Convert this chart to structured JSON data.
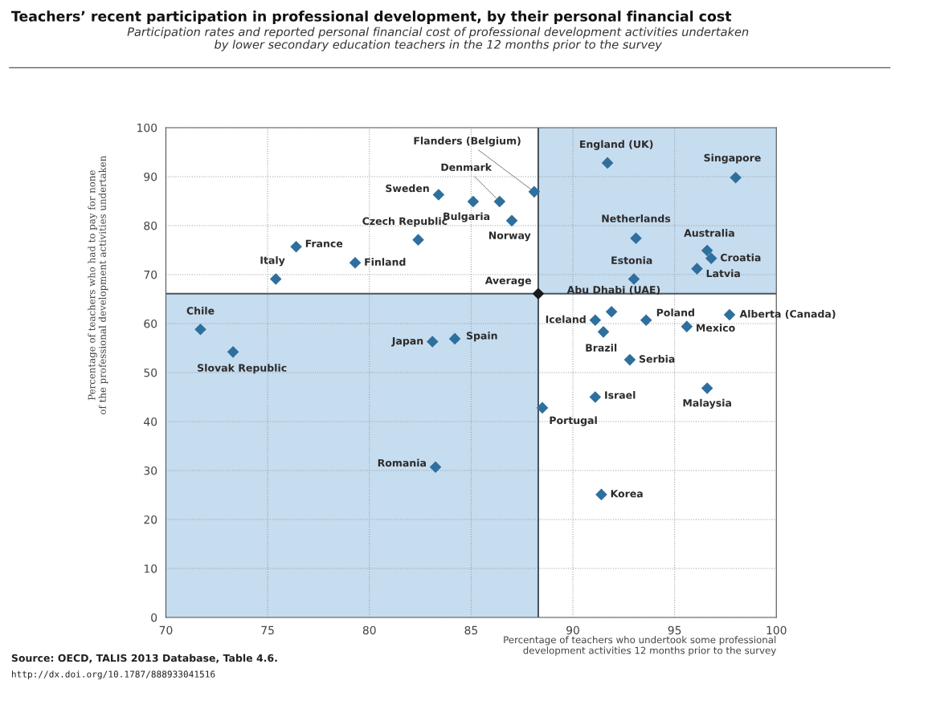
{
  "chart_data": {
    "type": "scatter",
    "title": "Teachers’ recent participation in professional development, by their personal financial cost",
    "subtitle": "Participation rates and reported personal financial cost of professional development activities undertaken\nby lower secondary education teachers in the 12 months prior to the survey",
    "xlabel": "Percentage of teachers who undertook some professional\ndevelopment activities 12 months prior to the survey",
    "ylabel": "Percentage of teachers who had to pay for none\nof the professional development activities undertaken",
    "series": [
      {
        "color": "#2e6f9e",
        "marker": "diamond",
        "x": [
          88.1,
          83.4,
          85.1,
          86.4,
          87.0,
          82.4,
          76.4,
          79.3,
          75.4,
          71.7,
          73.3,
          83.1,
          84.2,
          83.25,
          91.7,
          98.0,
          93.1,
          96.6,
          96.8,
          96.1,
          93.0,
          91.9,
          91.1,
          93.6,
          97.7,
          95.6,
          91.5,
          92.8,
          91.1,
          96.6,
          88.5,
          91.4
        ],
        "values": [
          86.9,
          86.3,
          84.9,
          84.9,
          81.0,
          77.1,
          75.7,
          72.4,
          69.1,
          58.8,
          54.2,
          56.3,
          56.9,
          30.7,
          92.8,
          89.8,
          77.4,
          74.9,
          73.3,
          71.2,
          69.1,
          62.4,
          60.7,
          60.7,
          61.8,
          59.4,
          58.3,
          52.6,
          45.0,
          46.8,
          42.8,
          25.1
        ]
      },
      {
        "color": "#1a1a1a",
        "marker": "diamond",
        "x": [
          88.3
        ],
        "values": [
          66.1
        ]
      }
    ],
    "ref_lines": [
      {
        "axis": "x",
        "value": 88.3,
        "color": "#4a5560"
      },
      {
        "axis": "y",
        "value": 66.1,
        "color": "#4a5560"
      }
    ],
    "xlim": [
      70,
      100
    ],
    "xticks": [
      70,
      75,
      80,
      85,
      90,
      95,
      100
    ],
    "ylim": [
      0,
      100
    ],
    "yticks": [
      0,
      10,
      20,
      30,
      40,
      50,
      60,
      70,
      80,
      90,
      100
    ],
    "grid": true,
    "line_style": "dotted",
    "annotations": [
      {
        "text": "Flanders (Belgium)",
        "x": 88.1,
        "y": 86.9
      },
      {
        "text": "Sweden",
        "x": 83.4,
        "y": 86.3
      },
      {
        "text": "Bulgaria",
        "x": 85.1,
        "y": 84.9
      },
      {
        "text": "Denmark",
        "x": 86.4,
        "y": 84.9
      },
      {
        "text": "Norway",
        "x": 87.0,
        "y": 81.0
      },
      {
        "text": "Czech Republic",
        "x": 82.4,
        "y": 77.1
      },
      {
        "text": "France",
        "x": 76.4,
        "y": 75.7
      },
      {
        "text": "Finland",
        "x": 79.3,
        "y": 72.4
      },
      {
        "text": "Italy",
        "x": 75.4,
        "y": 69.1
      },
      {
        "text": "Chile",
        "x": 71.7,
        "y": 58.8
      },
      {
        "text": "Slovak Republic",
        "x": 73.3,
        "y": 54.2
      },
      {
        "text": "Japan",
        "x": 83.1,
        "y": 56.3
      },
      {
        "text": "Spain",
        "x": 84.2,
        "y": 56.9
      },
      {
        "text": "Romania",
        "x": 83.25,
        "y": 30.7
      },
      {
        "text": "England (UK)",
        "x": 91.7,
        "y": 92.8
      },
      {
        "text": "Singapore",
        "x": 98.0,
        "y": 89.8
      },
      {
        "text": "Netherlands",
        "x": 93.1,
        "y": 77.4
      },
      {
        "text": "Australia",
        "x": 96.6,
        "y": 74.9
      },
      {
        "text": "Croatia",
        "x": 96.8,
        "y": 73.3
      },
      {
        "text": "Latvia",
        "x": 96.1,
        "y": 71.2
      },
      {
        "text": "Estonia",
        "x": 93.0,
        "y": 69.1
      },
      {
        "text": "Abu Dhabi (UAE)",
        "x": 91.9,
        "y": 62.4
      },
      {
        "text": "Iceland",
        "x": 91.1,
        "y": 60.7
      },
      {
        "text": "Poland",
        "x": 93.6,
        "y": 60.7
      },
      {
        "text": "Alberta (Canada)",
        "x": 97.7,
        "y": 61.8
      },
      {
        "text": "Mexico",
        "x": 95.6,
        "y": 59.4
      },
      {
        "text": "Brazil",
        "x": 91.5,
        "y": 58.3
      },
      {
        "text": "Serbia",
        "x": 92.8,
        "y": 52.6
      },
      {
        "text": "Israel",
        "x": 91.1,
        "y": 45.0
      },
      {
        "text": "Malaysia",
        "x": 96.6,
        "y": 46.8
      },
      {
        "text": "Portugal",
        "x": 88.5,
        "y": 42.8
      },
      {
        "text": "Korea",
        "x": 91.4,
        "y": 25.1
      },
      {
        "text": "Average",
        "x": 88.3,
        "y": 66.1
      },
      "Source: OECD, TALIS 2013 Database, Table 4.6.",
      "http://dx.doi.org/10.1787/888933041516"
    ]
  }
}
